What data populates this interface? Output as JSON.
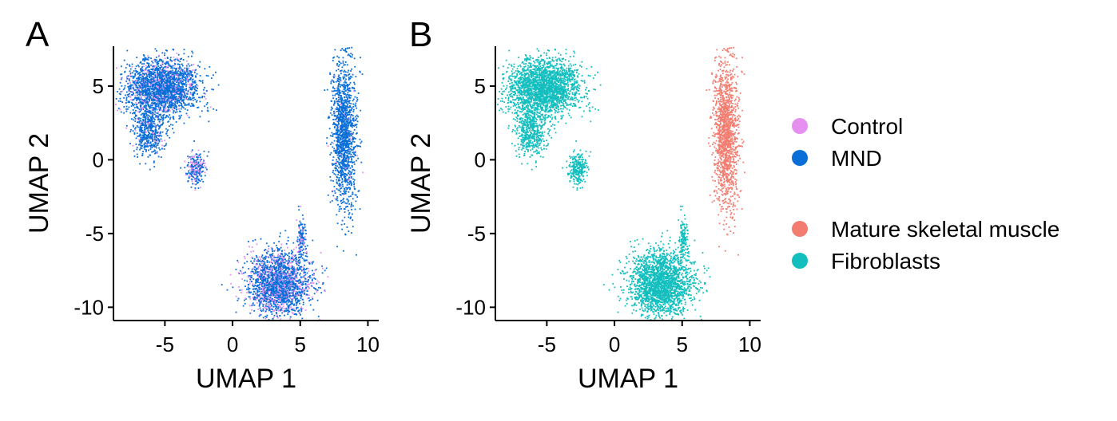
{
  "panels": [
    {
      "letter": "A",
      "chart_data": {
        "type": "scatter",
        "xlabel": "UMAP 1",
        "ylabel": "UMAP 2",
        "xlim": [
          -8.8,
          10.8
        ],
        "ylim": [
          -10.9,
          7.7
        ],
        "x_ticks": [
          -5,
          0,
          5,
          10
        ],
        "y_ticks": [
          5,
          0,
          -5,
          -10
        ],
        "grid": false,
        "color_by": "condition",
        "series": [
          {
            "name": "Control",
            "color": "#E58FF1"
          },
          {
            "name": "MND",
            "color": "#0A6ED8"
          }
        ],
        "clusters": [
          {
            "label": "cluster-top-left",
            "center": [
              -5.3,
              4.9
            ],
            "spread": [
              1.3,
              1.0
            ],
            "n": 2200,
            "control_fraction": 0.14
          },
          {
            "label": "cluster-top-left-lower",
            "center": [
              -6.2,
              2.0
            ],
            "spread": [
              0.55,
              0.9
            ],
            "n": 500,
            "control_fraction": 0.12
          },
          {
            "label": "cluster-top-left-tail",
            "center": [
              -3.4,
              5.9
            ],
            "spread": [
              0.4,
              0.12
            ],
            "n": 40,
            "control_fraction": 0.2
          },
          {
            "label": "cluster-small-middle",
            "center": [
              -2.8,
              -0.5
            ],
            "spread": [
              0.35,
              0.55
            ],
            "n": 260,
            "control_fraction": 0.35
          },
          {
            "label": "cluster-right-strip",
            "center": [
              8.2,
              1.8
            ],
            "spread": [
              0.45,
              2.6
            ],
            "n": 1400,
            "control_fraction": 0.03
          },
          {
            "label": "cluster-bottom",
            "center": [
              3.4,
              -8.3
            ],
            "spread": [
              1.2,
              1.1
            ],
            "n": 2100,
            "control_fraction": 0.28
          },
          {
            "label": "cluster-bottom-tail",
            "center": [
              5.0,
              -5.2
            ],
            "spread": [
              0.15,
              0.7
            ],
            "n": 120,
            "control_fraction": 0.25
          }
        ]
      }
    },
    {
      "letter": "B",
      "chart_data": {
        "type": "scatter",
        "xlabel": "UMAP 1",
        "ylabel": "UMAP 2",
        "xlim": [
          -8.8,
          10.8
        ],
        "ylim": [
          -10.9,
          7.7
        ],
        "x_ticks": [
          -5,
          0,
          5,
          10
        ],
        "y_ticks": [
          5,
          0,
          -5,
          -10
        ],
        "grid": false,
        "color_by": "cell_type",
        "series": [
          {
            "name": "Mature skeletal muscle",
            "color": "#F27C6F"
          },
          {
            "name": "Fibroblasts",
            "color": "#13BEBE"
          }
        ],
        "clusters": [
          {
            "label": "cluster-top-left",
            "center": [
              -5.3,
              4.9
            ],
            "spread": [
              1.3,
              1.0
            ],
            "n": 2200,
            "cell_type": "Fibroblasts"
          },
          {
            "label": "cluster-top-left-lower",
            "center": [
              -6.2,
              2.0
            ],
            "spread": [
              0.55,
              0.9
            ],
            "n": 500,
            "cell_type": "Fibroblasts"
          },
          {
            "label": "cluster-top-left-tail",
            "center": [
              -3.4,
              5.9
            ],
            "spread": [
              0.4,
              0.12
            ],
            "n": 40,
            "cell_type": "Fibroblasts"
          },
          {
            "label": "cluster-small-middle",
            "center": [
              -2.8,
              -0.5
            ],
            "spread": [
              0.35,
              0.55
            ],
            "n": 260,
            "cell_type": "Fibroblasts"
          },
          {
            "label": "cluster-right-strip",
            "center": [
              8.2,
              1.8
            ],
            "spread": [
              0.45,
              2.6
            ],
            "n": 1400,
            "cell_type": "Mature skeletal muscle"
          },
          {
            "label": "cluster-bottom",
            "center": [
              3.4,
              -8.3
            ],
            "spread": [
              1.2,
              1.1
            ],
            "n": 2100,
            "cell_type": "Fibroblasts"
          },
          {
            "label": "cluster-bottom-tail",
            "center": [
              5.0,
              -5.2
            ],
            "spread": [
              0.15,
              0.7
            ],
            "n": 120,
            "cell_type": "Fibroblasts"
          }
        ]
      }
    }
  ],
  "legend": {
    "groups": [
      {
        "items": [
          {
            "label": "Control",
            "color": "#E58FF1"
          },
          {
            "label": "MND",
            "color": "#0A6ED8"
          }
        ]
      },
      {
        "items": [
          {
            "label": "Mature skeletal muscle",
            "color": "#F27C6F"
          },
          {
            "label": "Fibroblasts",
            "color": "#13BEBE"
          }
        ]
      }
    ]
  }
}
